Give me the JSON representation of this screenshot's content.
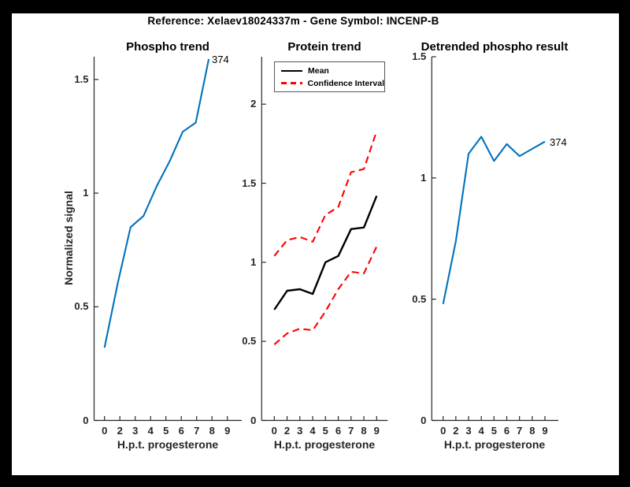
{
  "figure": {
    "suptitle": "Reference:  Xelaev18024337m - Gene Symbol:  INCENP-B",
    "frame_color": "#000000",
    "canvas_color": "#ffffff",
    "axis_color": "#262626"
  },
  "colors": {
    "line_blue": "#0072BD",
    "line_black": "#000000",
    "line_red": "#FF0000"
  },
  "chart_data": [
    {
      "type": "line",
      "title": "Phospho trend",
      "xlabel": "H.p.t. progesterone",
      "ylabel": "Normalized signal",
      "xticklabels": [
        "0",
        "2",
        "3",
        "4",
        "5",
        "6",
        "7",
        "8",
        "9"
      ],
      "yticks": [
        {
          "v": 0,
          "label": "0"
        },
        {
          "v": 0.5,
          "label": "0.5"
        },
        {
          "v": 1,
          "label": "1"
        },
        {
          "v": 1.5,
          "label": "1.5"
        }
      ],
      "ylim": [
        0,
        1.6
      ],
      "grid": false,
      "series": [
        {
          "key": "phospho-line",
          "name": "374",
          "color": "#0072BD",
          "style": "solid",
          "values": [
            0.32,
            0.6,
            0.85,
            0.9,
            1.03,
            1.14,
            1.27,
            1.31,
            1.59
          ]
        }
      ],
      "end_label": "374"
    },
    {
      "type": "line",
      "title": "Protein trend",
      "xlabel": "H.p.t. progesterone",
      "ylabel": "",
      "xticklabels": [
        "0",
        "2",
        "3",
        "4",
        "5",
        "6",
        "7",
        "8",
        "9"
      ],
      "yticks": [
        {
          "v": 0,
          "label": "0"
        },
        {
          "v": 0.5,
          "label": "0.5"
        },
        {
          "v": 1,
          "label": "1"
        },
        {
          "v": 1.5,
          "label": "1.5"
        },
        {
          "v": 2,
          "label": "2"
        }
      ],
      "ylim": [
        0,
        2.3
      ],
      "grid": false,
      "series": [
        {
          "key": "mean-line",
          "name": "Mean",
          "color": "#000000",
          "style": "solid",
          "values": [
            0.7,
            0.82,
            0.83,
            0.8,
            1.0,
            1.04,
            1.21,
            1.22,
            1.42
          ]
        },
        {
          "key": "ci-upper-line",
          "name": "Confidence Interval",
          "color": "#FF0000",
          "style": "dashed",
          "values": [
            1.04,
            1.14,
            1.16,
            1.13,
            1.3,
            1.35,
            1.57,
            1.59,
            1.83
          ]
        },
        {
          "key": "ci-lower-line",
          "name": "Confidence Interval",
          "color": "#FF0000",
          "style": "dashed",
          "values": [
            0.48,
            0.55,
            0.58,
            0.57,
            0.69,
            0.83,
            0.94,
            0.93,
            1.1
          ]
        }
      ],
      "legend": {
        "position": "top-left",
        "entries": [
          {
            "label": "Mean",
            "style": "solid",
            "color": "#000000"
          },
          {
            "label": "Confidence Interval",
            "style": "dashed",
            "color": "#FF0000"
          }
        ]
      }
    },
    {
      "type": "line",
      "title": "Detrended phospho result",
      "xlabel": "H.p.t. progesterone",
      "ylabel": "",
      "xticklabels": [
        "0",
        "2",
        "3",
        "4",
        "5",
        "6",
        "7",
        "8",
        "9"
      ],
      "yticks": [
        {
          "v": 0,
          "label": "0"
        },
        {
          "v": 0.5,
          "label": "0.5"
        },
        {
          "v": 1,
          "label": "1"
        },
        {
          "v": 1.5,
          "label": "1.5"
        }
      ],
      "ylim": [
        0,
        1.5
      ],
      "grid": false,
      "series": [
        {
          "key": "detrended-line",
          "name": "374",
          "color": "#0072BD",
          "style": "solid",
          "values": [
            0.48,
            0.74,
            1.1,
            1.17,
            1.07,
            1.14,
            1.09,
            1.12,
            1.15
          ]
        }
      ],
      "end_label": "374"
    }
  ]
}
